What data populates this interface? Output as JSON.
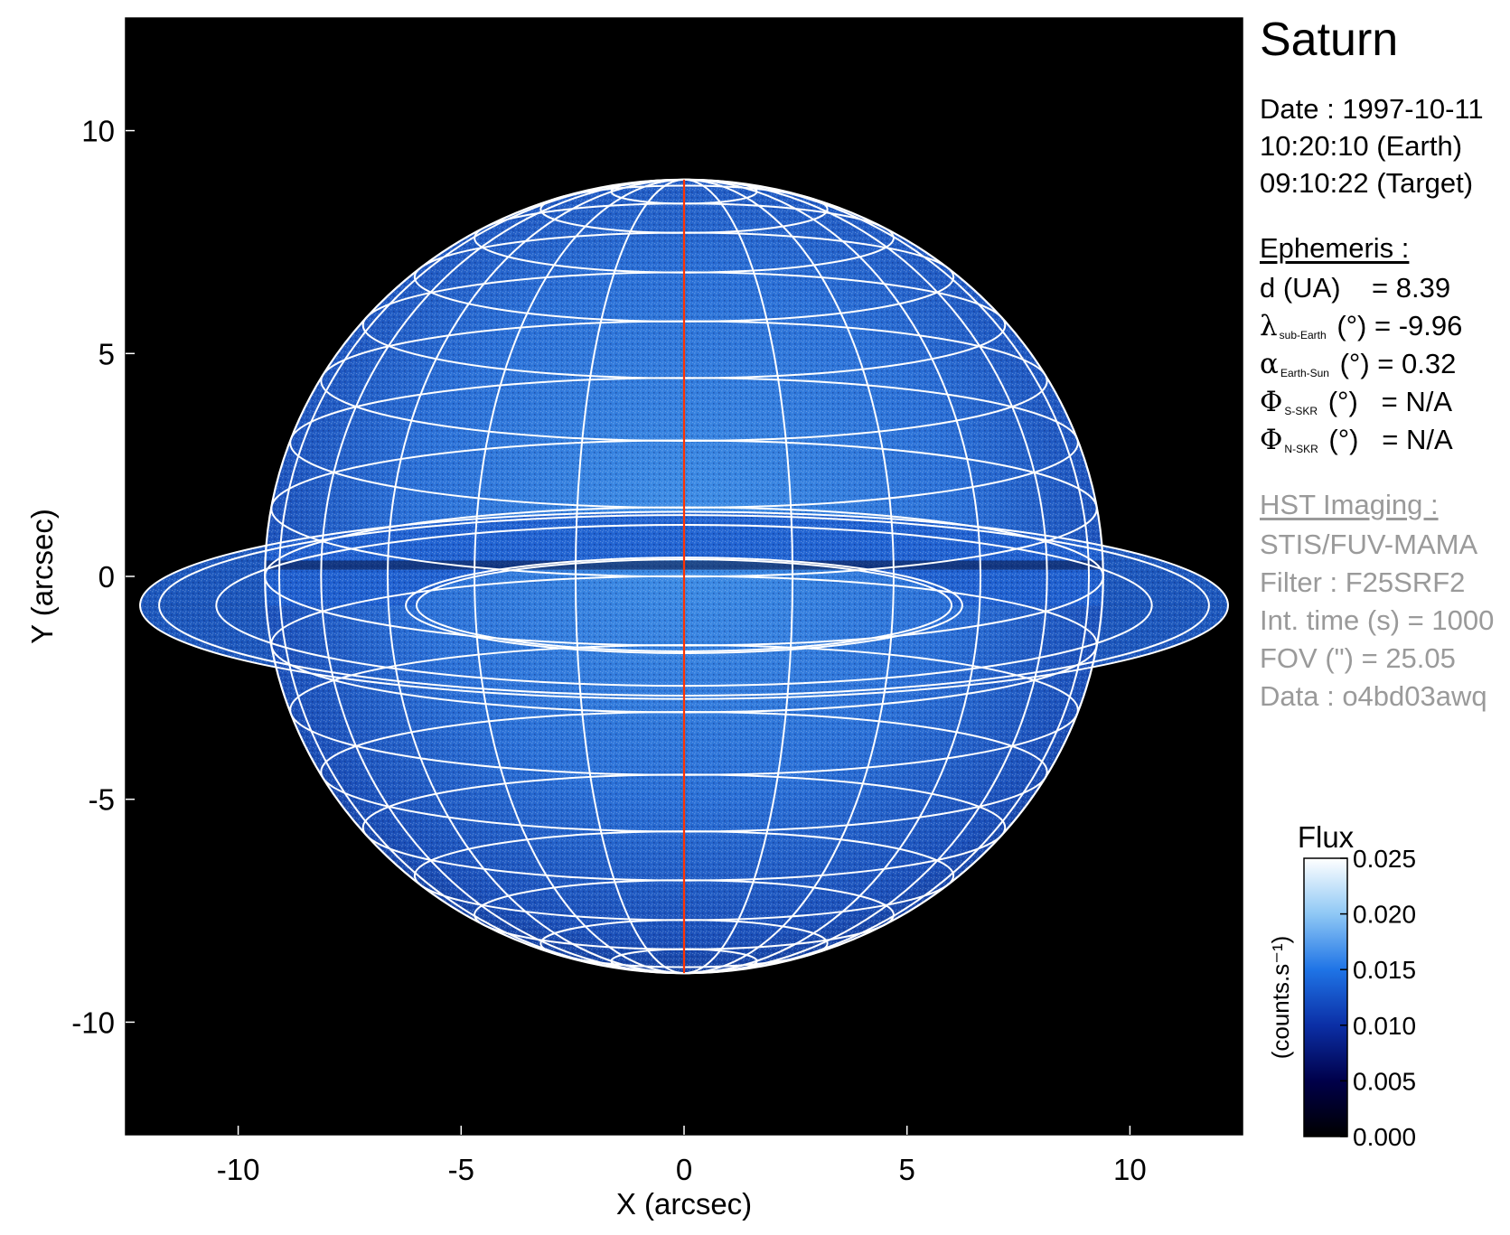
{
  "chart_data": {
    "type": "heatmap",
    "title": "",
    "xlabel": "X (arcsec)",
    "ylabel": "Y (arcsec)",
    "xlim": [
      -12.525,
      12.525
    ],
    "ylim": [
      -12.525,
      12.525
    ],
    "x_ticks": [
      -10,
      -5,
      0,
      5,
      10
    ],
    "y_ticks": [
      -10,
      -5,
      0,
      5,
      10
    ],
    "x_tick_labels": [
      "-10",
      "-5",
      "0",
      "5",
      "10"
    ],
    "y_tick_labels": [
      "10",
      "5",
      "0",
      "-5",
      "-10"
    ],
    "colorbar": {
      "title": "Flux",
      "label": "(counts.s⁻¹)",
      "range": [
        0.0,
        0.025
      ],
      "ticks": [
        0.0,
        0.005,
        0.01,
        0.015,
        0.02,
        0.025
      ],
      "tick_labels": [
        "0.000",
        "0.005",
        "0.010",
        "0.015",
        "0.020",
        "0.025"
      ],
      "colors": [
        "#000000",
        "#00004a",
        "#0b2fa6",
        "#1f74e6",
        "#8fc8f5",
        "#ffffff"
      ]
    },
    "planet": {
      "equatorial_radius": 9.4,
      "polar_radius": 8.9,
      "central_meridian_color": "#ff3300",
      "grid_color": "#ffffff"
    },
    "rings": {
      "outer_radius": 12.2,
      "inner_radius": 6.0,
      "minor_axis_ratio": 0.172
    },
    "background_color": "#000000"
  },
  "info": {
    "target": "Saturn",
    "date": "Date : 1997-10-11",
    "time_earth": "10:20:10 (Earth)",
    "time_target": "09:10:22 (Target)",
    "ephemeris_header": "Ephemeris :",
    "distance": {
      "label": "d (UA)",
      "value": "= 8.39"
    },
    "lat_sub_earth": {
      "symbol": "λ",
      "sub": "sub-Earth",
      "unit": "(°)",
      "value": "= -9.96"
    },
    "phase_angle": {
      "symbol": "α",
      "sub": "Earth-Sun",
      "unit": "(°)",
      "value": "= 0.32"
    },
    "phi_s_skr": {
      "symbol": "Φ",
      "sub": "S-SKR",
      "unit": "(°)",
      "value": "= N/A"
    },
    "phi_n_skr": {
      "symbol": "Φ",
      "sub": "N-SKR",
      "unit": "(°)",
      "value": "= N/A"
    },
    "imaging_header": "HST Imaging :",
    "instrument": "STIS/FUV-MAMA",
    "filter": "Filter : F25SRF2",
    "int_time": "Int. time (s) = 1000",
    "fov": "FOV (\") = 25.05",
    "data_id": "Data : o4bd03awq"
  }
}
